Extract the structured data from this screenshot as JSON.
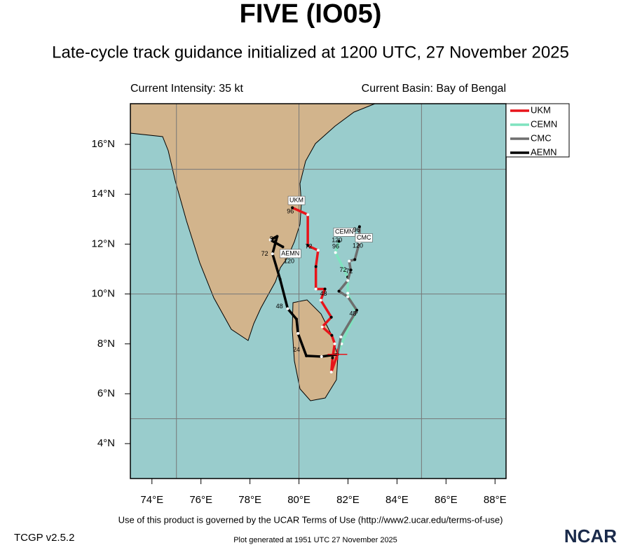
{
  "chart_data": {
    "type": "map",
    "title": "FIVE (IO05)",
    "subtitle": "Late-cycle track guidance initialized at 1200 UTC, 27 November 2025",
    "intensity_text": "Current Intensity: 35 kt",
    "basin_text": "Current Basin: Bay of Bengal",
    "footer": "Use of this product is governed by the UCAR Terms of Use (http://www2.ucar.edu/terms-of-use)",
    "version": "TCGP v2.5.2",
    "generated": "Plot generated at 1951 UTC   27 November 2025",
    "logo": "NCAR",
    "xlim": [
      73.12,
      88.45
    ],
    "ylim": [
      2.6,
      17.63
    ],
    "xticks": [
      {
        "value": 74,
        "label": "74°E"
      },
      {
        "value": 76,
        "label": "76°E"
      },
      {
        "value": 78,
        "label": "78°E"
      },
      {
        "value": 80,
        "label": "80°E"
      },
      {
        "value": 82,
        "label": "82°E"
      },
      {
        "value": 84,
        "label": "84°E"
      },
      {
        "value": 86,
        "label": "86°E"
      },
      {
        "value": 88,
        "label": "88°E"
      }
    ],
    "yticks": [
      {
        "value": 4,
        "label": "4°N"
      },
      {
        "value": 6,
        "label": "6°N"
      },
      {
        "value": 8,
        "label": "8°N"
      },
      {
        "value": 10,
        "label": "10°N"
      },
      {
        "value": 12,
        "label": "12°N"
      },
      {
        "value": 14,
        "label": "14°N"
      },
      {
        "value": 16,
        "label": "16°N"
      }
    ],
    "grid_lon": [
      75,
      80,
      85
    ],
    "grid_lat": [
      5,
      10,
      15
    ],
    "current_position": {
      "lon": 81.57,
      "lat": 7.58
    },
    "series": [
      {
        "name": "UKM",
        "color": "#e8141a",
        "lon": [
          81.57,
          81.32,
          81.37,
          81.46,
          81.34,
          80.95,
          81.32,
          80.89,
          81.06,
          80.69,
          80.69,
          80.78,
          80.36,
          80.36,
          79.73
        ],
        "lat": [
          7.58,
          6.87,
          7.44,
          8.0,
          8.34,
          8.68,
          9.07,
          9.75,
          10.2,
          10.2,
          11.1,
          11.75,
          11.94,
          13.18,
          13.46
        ],
        "tag": {
          "lon": 79.9,
          "lat": 13.75
        },
        "hour_labels": [
          {
            "text": "96",
            "lon": 79.65,
            "lat": 13.3
          },
          {
            "text": "72",
            "lon": 80.4,
            "lat": 11.9
          },
          {
            "text": "48",
            "lon": 81.0,
            "lat": 10.0
          }
        ]
      },
      {
        "name": "CEMN",
        "color": "#7fe3bf",
        "lon": [
          81.57,
          81.74,
          82.33,
          81.99,
          81.99,
          81.49,
          81.63
        ],
        "lat": [
          7.58,
          8.0,
          9.27,
          10.03,
          10.68,
          11.66,
          12.11
        ],
        "tag": {
          "lon": 81.85,
          "lat": 12.48
        },
        "hour_labels": [
          {
            "text": "120",
            "lon": 81.55,
            "lat": 12.15
          },
          {
            "text": "96",
            "lon": 81.5,
            "lat": 11.9
          },
          {
            "text": "72",
            "lon": 81.8,
            "lat": 10.95
          }
        ]
      },
      {
        "name": "CMC",
        "color": "#6e6e6e",
        "lon": [
          81.57,
          81.71,
          82.36,
          81.99,
          81.63,
          81.99,
          82.11,
          82.05,
          82.28,
          82.47,
          82.47
        ],
        "lat": [
          7.58,
          8.28,
          9.35,
          9.89,
          10.11,
          10.54,
          10.96,
          11.32,
          11.38,
          12.08,
          12.7
        ],
        "tag": {
          "lon": 82.65,
          "lat": 12.25
        },
        "hour_labels": [
          {
            "text": "96",
            "lon": 82.35,
            "lat": 12.55
          },
          {
            "text": "120",
            "lon": 82.4,
            "lat": 11.93
          },
          {
            "text": "72",
            "lon": 82.05,
            "lat": 10.9
          },
          {
            "text": "48",
            "lon": 82.2,
            "lat": 9.2
          }
        ]
      },
      {
        "name": "AEMN",
        "color": "#000000",
        "lon": [
          81.57,
          80.92,
          80.3,
          79.96,
          79.9,
          79.54,
          79.23,
          78.92,
          79.11,
          78.83,
          79.34
        ],
        "lat": [
          7.58,
          7.49,
          7.52,
          8.42,
          8.99,
          9.41,
          10.59,
          11.61,
          12.31,
          12.17,
          11.89
        ],
        "tag": {
          "lon": 79.65,
          "lat": 11.62
        },
        "hour_labels": [
          {
            "text": "96",
            "lon": 78.95,
            "lat": 12.2
          },
          {
            "text": "72",
            "lon": 78.6,
            "lat": 11.6
          },
          {
            "text": "120",
            "lon": 79.6,
            "lat": 11.3
          },
          {
            "text": "48",
            "lon": 79.2,
            "lat": 9.5
          },
          {
            "text": "24",
            "lon": 79.9,
            "lat": 7.75
          }
        ]
      }
    ]
  }
}
